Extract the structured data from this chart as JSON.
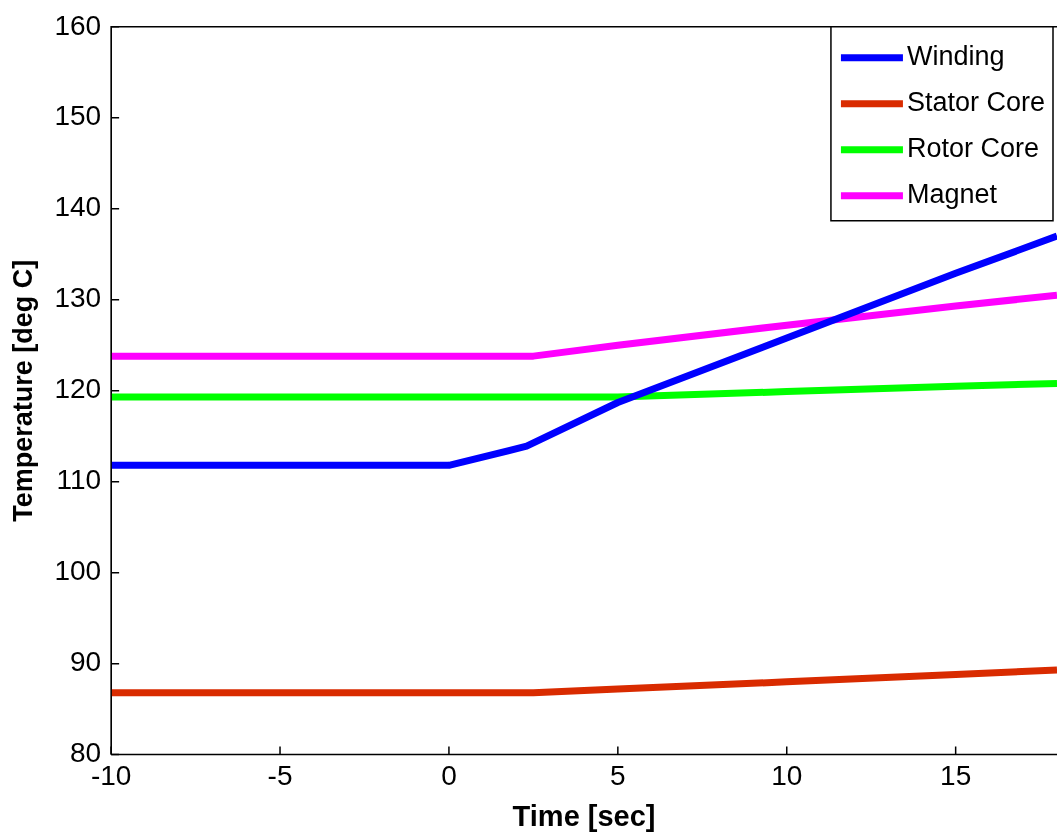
{
  "chart_data": {
    "type": "line",
    "xlabel": "Time [sec]",
    "ylabel": "Temperature [deg C]",
    "xlim": [
      -10,
      18
    ],
    "xticks": [
      -10,
      -5,
      0,
      5,
      10,
      15
    ],
    "ylim": [
      80,
      160
    ],
    "yticks": [
      80,
      90,
      100,
      110,
      120,
      130,
      140,
      150,
      160
    ],
    "grid": false,
    "legend": "top right",
    "marker": "none",
    "line_style": "solid",
    "series": [
      {
        "name": "Winding",
        "color": "#0000ff",
        "x": [
          -10,
          0,
          2.3,
          5,
          10,
          15,
          18
        ],
        "values": [
          111.8,
          111.8,
          113.9,
          118.7,
          125.8,
          132.9,
          137.0
        ]
      },
      {
        "name": "Stator Core",
        "color": "#d92b00",
        "x": [
          -10,
          2.5,
          5,
          10,
          15,
          18
        ],
        "values": [
          86.8,
          86.8,
          87.2,
          88.0,
          88.8,
          89.3
        ]
      },
      {
        "name": "Rotor Core",
        "color": "#00ff00",
        "x": [
          -10,
          5,
          10,
          15,
          18
        ],
        "values": [
          119.3,
          119.3,
          119.9,
          120.5,
          120.8
        ]
      },
      {
        "name": "Magnet",
        "color": "#ff00ff",
        "x": [
          -10,
          2.5,
          5,
          10,
          15,
          18
        ],
        "values": [
          123.8,
          123.8,
          125.0,
          127.2,
          129.3,
          130.5
        ]
      }
    ]
  }
}
